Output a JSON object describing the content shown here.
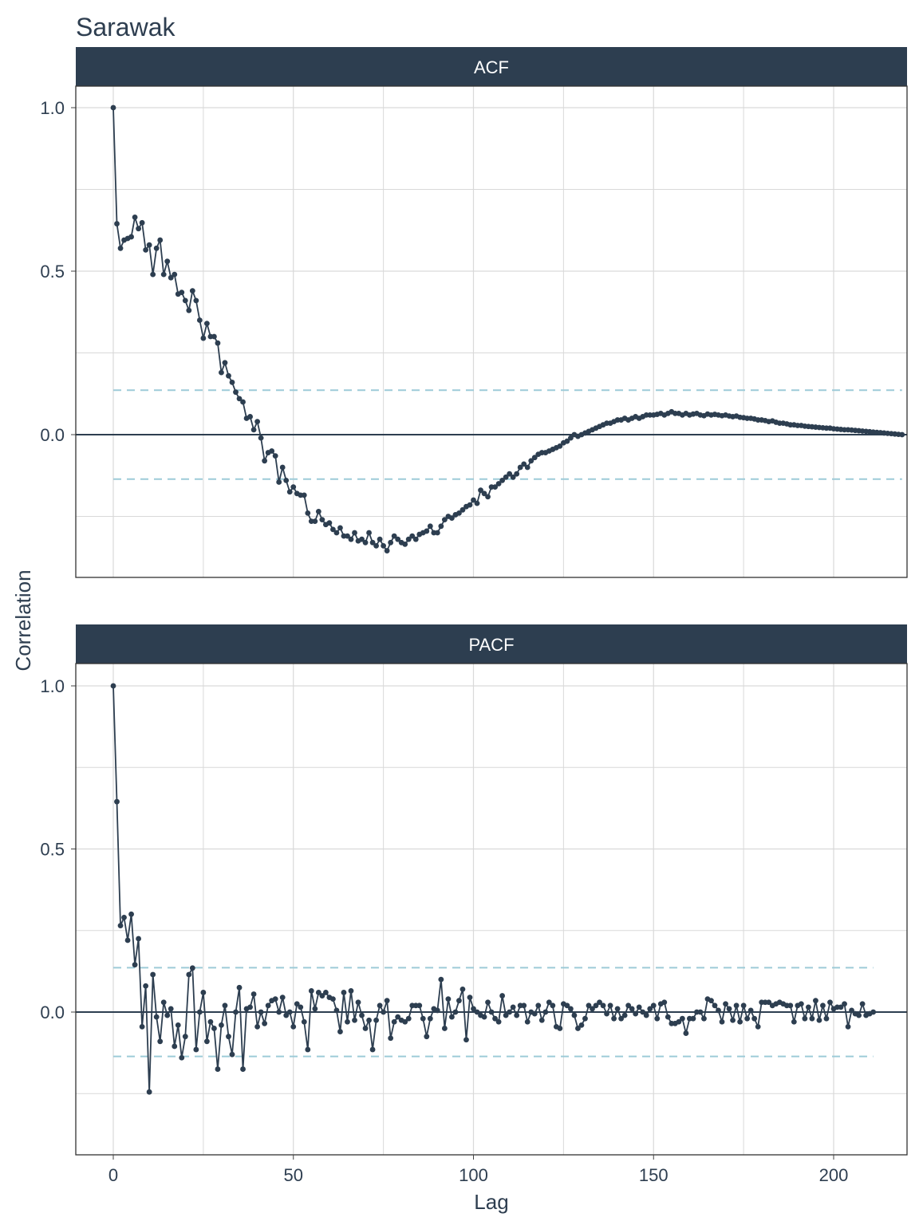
{
  "title": "Sarawak",
  "xlabel": "Lag",
  "ylabel": "Correlation",
  "colors": {
    "strip": "#2D3E50",
    "strip_text": "#ffffff",
    "line": "#2D3E50",
    "confidence": "#9DCBD8",
    "grid": "#D9D9D9",
    "text": "#2E3E50"
  },
  "chart_data": [
    {
      "type": "line",
      "panel": "ACF",
      "x_ticks": [
        0,
        50,
        100,
        150,
        200
      ],
      "y_ticks": [
        "0.0",
        "0.5",
        "1.0"
      ],
      "xlim": [
        -10,
        220
      ],
      "ylim": [
        -0.44,
        1.07
      ],
      "confidence_band": [
        -0.136,
        0.136
      ],
      "zero_line": 0,
      "grid": true,
      "series": [
        {
          "x_start": 0,
          "x_step": 1,
          "values": [
            1.0,
            0.645,
            0.57,
            0.595,
            0.6,
            0.605,
            0.665,
            0.63,
            0.648,
            0.565,
            0.58,
            0.49,
            0.57,
            0.595,
            0.49,
            0.53,
            0.48,
            0.49,
            0.43,
            0.435,
            0.41,
            0.38,
            0.44,
            0.41,
            0.35,
            0.295,
            0.34,
            0.3,
            0.3,
            0.28,
            0.19,
            0.22,
            0.18,
            0.16,
            0.13,
            0.11,
            0.1,
            0.05,
            0.055,
            0.015,
            0.04,
            -0.01,
            -0.08,
            -0.055,
            -0.05,
            -0.065,
            -0.145,
            -0.1,
            -0.14,
            -0.175,
            -0.16,
            -0.18,
            -0.185,
            -0.185,
            -0.24,
            -0.265,
            -0.265,
            -0.235,
            -0.26,
            -0.275,
            -0.27,
            -0.29,
            -0.3,
            -0.285,
            -0.31,
            -0.31,
            -0.32,
            -0.3,
            -0.325,
            -0.32,
            -0.33,
            -0.3,
            -0.33,
            -0.34,
            -0.32,
            -0.34,
            -0.355,
            -0.33,
            -0.31,
            -0.32,
            -0.33,
            -0.335,
            -0.32,
            -0.31,
            -0.32,
            -0.305,
            -0.3,
            -0.295,
            -0.28,
            -0.3,
            -0.3,
            -0.28,
            -0.26,
            -0.25,
            -0.255,
            -0.245,
            -0.24,
            -0.23,
            -0.22,
            -0.215,
            -0.2,
            -0.21,
            -0.17,
            -0.18,
            -0.19,
            -0.16,
            -0.16,
            -0.15,
            -0.14,
            -0.13,
            -0.12,
            -0.13,
            -0.12,
            -0.1,
            -0.09,
            -0.1,
            -0.08,
            -0.07,
            -0.06,
            -0.055,
            -0.055,
            -0.05,
            -0.045,
            -0.04,
            -0.035,
            -0.025,
            -0.02,
            -0.01,
            0.0,
            -0.005,
            0.0,
            0.005,
            0.01,
            0.015,
            0.02,
            0.025,
            0.03,
            0.035,
            0.035,
            0.04,
            0.045,
            0.045,
            0.05,
            0.045,
            0.05,
            0.055,
            0.05,
            0.055,
            0.06,
            0.06,
            0.06,
            0.062,
            0.065,
            0.06,
            0.065,
            0.07,
            0.065,
            0.065,
            0.06,
            0.065,
            0.06,
            0.063,
            0.065,
            0.06,
            0.058,
            0.063,
            0.06,
            0.062,
            0.06,
            0.058,
            0.06,
            0.057,
            0.055,
            0.057,
            0.053,
            0.052,
            0.05,
            0.05,
            0.048,
            0.045,
            0.045,
            0.043,
            0.04,
            0.042,
            0.038,
            0.035,
            0.035,
            0.033,
            0.03,
            0.03,
            0.028,
            0.028,
            0.026,
            0.025,
            0.024,
            0.023,
            0.022,
            0.021,
            0.02,
            0.02,
            0.018,
            0.017,
            0.016,
            0.015,
            0.015,
            0.014,
            0.013,
            0.012,
            0.011,
            0.01,
            0.009,
            0.008,
            0.007,
            0.006,
            0.005,
            0.004,
            0.003,
            0.002,
            0.001,
            0.0
          ]
        }
      ]
    },
    {
      "type": "line",
      "panel": "PACF",
      "x_ticks": [
        0,
        50,
        100,
        150,
        200
      ],
      "y_ticks": [
        "0.0",
        "0.5",
        "1.0"
      ],
      "xlim": [
        -10,
        220
      ],
      "ylim": [
        -0.44,
        1.07
      ],
      "confidence_band": [
        -0.136,
        0.136
      ],
      "zero_line": 0,
      "grid": true,
      "series": [
        {
          "x_start": 0,
          "x_step": 1,
          "values": [
            1.0,
            0.645,
            0.265,
            0.29,
            0.22,
            0.3,
            0.145,
            0.225,
            -0.045,
            0.08,
            -0.245,
            0.115,
            -0.015,
            -0.09,
            0.03,
            -0.01,
            0.01,
            -0.105,
            -0.04,
            -0.14,
            -0.075,
            0.115,
            0.135,
            -0.115,
            0.0,
            0.06,
            -0.09,
            -0.03,
            -0.05,
            -0.175,
            -0.04,
            0.02,
            -0.075,
            -0.13,
            0.0,
            0.075,
            -0.175,
            0.01,
            0.015,
            0.055,
            -0.045,
            0.0,
            -0.035,
            0.02,
            0.035,
            0.04,
            0.0,
            0.045,
            -0.01,
            0.0,
            -0.045,
            0.025,
            0.015,
            -0.03,
            -0.115,
            0.065,
            0.01,
            0.06,
            0.05,
            0.06,
            0.045,
            0.04,
            0.005,
            -0.06,
            0.06,
            -0.03,
            0.065,
            -0.025,
            0.03,
            -0.01,
            -0.05,
            -0.025,
            -0.115,
            -0.025,
            0.02,
            0.0,
            0.035,
            -0.08,
            -0.03,
            -0.015,
            -0.025,
            -0.03,
            -0.02,
            0.02,
            0.02,
            0.02,
            -0.02,
            -0.075,
            -0.02,
            0.01,
            0.005,
            0.1,
            -0.05,
            0.04,
            -0.015,
            0.0,
            0.035,
            0.07,
            -0.085,
            0.045,
            0.01,
            0.0,
            -0.01,
            -0.015,
            0.03,
            0.0,
            -0.02,
            -0.03,
            0.05,
            -0.01,
            0.0,
            0.015,
            -0.01,
            0.02,
            0.02,
            -0.03,
            0.0,
            -0.005,
            0.02,
            -0.025,
            0.0,
            0.03,
            0.02,
            -0.045,
            -0.05,
            0.025,
            0.02,
            0.01,
            -0.01,
            -0.05,
            -0.04,
            -0.02,
            0.02,
            0.01,
            0.02,
            0.03,
            0.02,
            -0.005,
            0.02,
            -0.02,
            0.01,
            -0.02,
            -0.01,
            0.02,
            0.01,
            -0.005,
            0.015,
            0.0,
            -0.01,
            0.01,
            0.02,
            -0.02,
            0.025,
            0.03,
            -0.015,
            -0.035,
            -0.035,
            -0.03,
            -0.02,
            -0.065,
            -0.02,
            -0.02,
            0.0,
            0.0,
            -0.02,
            0.04,
            0.035,
            0.02,
            0.005,
            -0.03,
            0.025,
            0.01,
            -0.025,
            0.02,
            -0.03,
            0.02,
            -0.02,
            0.005,
            -0.02,
            -0.045,
            0.03,
            0.03,
            0.03,
            0.02,
            0.025,
            0.03,
            0.025,
            0.02,
            0.02,
            -0.03,
            0.02,
            0.025,
            -0.02,
            0.015,
            -0.02,
            0.035,
            -0.025,
            0.02,
            -0.02,
            0.03,
            0.01,
            0.015,
            0.015,
            0.025,
            -0.045,
            0.005,
            -0.005,
            -0.01,
            0.025,
            -0.01,
            -0.005,
            0.0
          ]
        }
      ]
    }
  ]
}
